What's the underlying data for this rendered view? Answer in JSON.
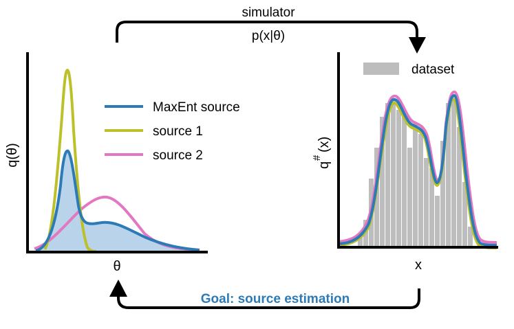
{
  "top_arrow": {
    "label_line1": "simulator",
    "label_line2": "p(x|θ)"
  },
  "bottom_arrow": {
    "label": "Goal: source estimation"
  },
  "left_plot": {
    "ylabel": "q(θ)",
    "xlabel": "θ",
    "legend": [
      {
        "name": "MaxEnt source",
        "color": "#2c7bb6"
      },
      {
        "name": "source 1",
        "color": "#bcc12b"
      },
      {
        "name": "source 2",
        "color": "#e377c2"
      }
    ]
  },
  "right_plot": {
    "ylabel_main": "q",
    "ylabel_sup": "#",
    "ylabel_arg": "(x)",
    "xlabel": "x",
    "legend": [
      {
        "name": "dataset",
        "color": "#bdbdbd"
      }
    ]
  },
  "colors": {
    "maxent": "#2c7bb6",
    "maxent_fill": "#b9d3ea",
    "source1": "#bcc12b",
    "source2": "#e377c2",
    "dataset": "#bdbdbd",
    "goal_text": "#2c7bb6"
  }
}
